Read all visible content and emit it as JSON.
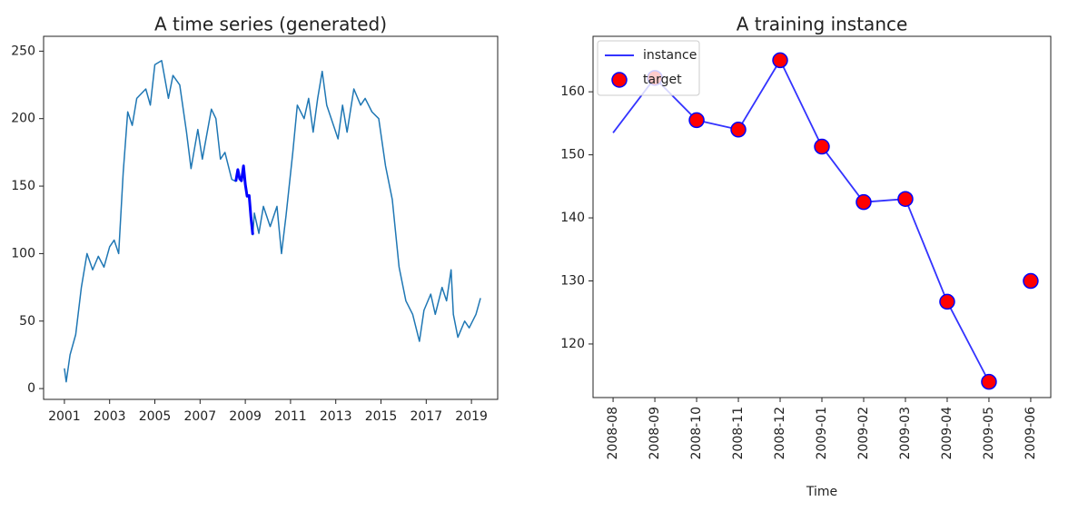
{
  "chart_data": [
    {
      "type": "line",
      "title": "A time series (generated)",
      "xlim": [
        2000.08,
        2020.16
      ],
      "xticks": [
        2001,
        2003,
        2005,
        2007,
        2009,
        2011,
        2013,
        2015,
        2017,
        2019
      ],
      "ylim": [
        -8,
        261
      ],
      "yticks": [
        0,
        50,
        100,
        150,
        200,
        250
      ],
      "series": [
        {
          "color": "#1f77b4",
          "linewidth": 1.5,
          "x": [
            2001.0,
            2001.08,
            2001.25,
            2001.5,
            2001.75,
            2002.0,
            2002.25,
            2002.5,
            2002.75,
            2003.0,
            2003.2,
            2003.4,
            2003.6,
            2003.8,
            2004.0,
            2004.2,
            2004.6,
            2004.8,
            2005.0,
            2005.3,
            2005.6,
            2005.8,
            2006.1,
            2006.4,
            2006.6,
            2006.9,
            2007.1,
            2007.5,
            2007.7,
            2007.9,
            2008.1,
            2008.4,
            2008.58,
            2008.67,
            2008.75,
            2008.83,
            2008.92,
            2009.0,
            2009.08,
            2009.17,
            2009.25,
            2009.33,
            2009.4,
            2009.6,
            2009.8,
            2010.1,
            2010.4,
            2010.6,
            2010.8,
            2011.1,
            2011.3,
            2011.6,
            2011.8,
            2012.0,
            2012.2,
            2012.4,
            2012.6,
            2012.9,
            2013.1,
            2013.3,
            2013.5,
            2013.8,
            2014.1,
            2014.3,
            2014.6,
            2014.9,
            2015.2,
            2015.5,
            2015.8,
            2016.1,
            2016.4,
            2016.7,
            2016.9,
            2017.2,
            2017.4,
            2017.7,
            2017.9,
            2018.1,
            2018.2,
            2018.4,
            2018.7,
            2018.9,
            2019.2,
            2019.4
          ],
          "values": [
            15,
            5,
            25,
            40,
            75,
            100,
            88,
            98,
            90,
            105,
            110,
            100,
            160,
            205,
            195,
            215,
            222,
            210,
            240,
            243,
            215,
            232,
            225,
            190,
            163,
            192,
            170,
            207,
            200,
            170,
            175,
            155,
            153.5,
            162.2,
            155.5,
            154,
            165,
            151.3,
            142.5,
            143,
            126.7,
            114,
            130,
            115,
            135,
            120,
            135,
            100,
            128,
            175,
            210,
            200,
            215,
            190,
            215,
            235,
            210,
            195,
            185,
            210,
            190,
            222,
            210,
            215,
            205,
            200,
            165,
            140,
            90,
            65,
            55,
            35,
            58,
            70,
            55,
            75,
            65,
            88,
            55,
            38,
            50,
            45,
            55,
            67
          ]
        },
        {
          "color": "blue",
          "linewidth": 3,
          "x": [
            2008.58,
            2008.67,
            2008.75,
            2008.83,
            2008.92,
            2009.0,
            2009.08,
            2009.17,
            2009.25,
            2009.33
          ],
          "values": [
            153.5,
            162.2,
            155.5,
            154,
            165,
            151.3,
            142.5,
            143,
            126.7,
            114
          ]
        }
      ]
    },
    {
      "type": "line",
      "title": "A training instance",
      "xlabel": "Time",
      "categories": [
        "2008-08",
        "2008-09",
        "2008-10",
        "2008-11",
        "2008-12",
        "2009-01",
        "2009-02",
        "2009-03",
        "2009-04",
        "2009-05",
        "2009-06"
      ],
      "ylim": [
        111.5,
        168.8
      ],
      "yticks": [
        120,
        130,
        140,
        150,
        160
      ],
      "legend": "upper left",
      "series": [
        {
          "name": "instance",
          "type": "line",
          "color": "#3333ff",
          "values": [
            153.5,
            162.2,
            155.5,
            154,
            165,
            151.3,
            142.5,
            143,
            126.7,
            114,
            null
          ]
        },
        {
          "name": "target",
          "type": "scatter",
          "color": "red",
          "edgecolor": "blue",
          "values": [
            null,
            162.2,
            155.5,
            154,
            165,
            151.3,
            142.5,
            143,
            126.7,
            114,
            130
          ]
        }
      ]
    }
  ]
}
